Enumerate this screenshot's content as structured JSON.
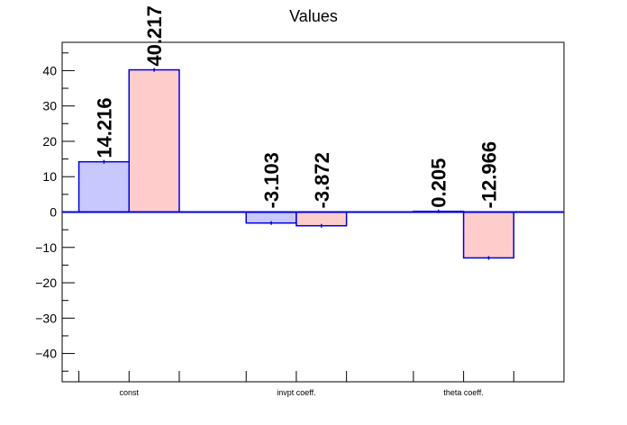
{
  "chart_data": {
    "type": "bar",
    "title": "Values",
    "xlabel": "",
    "ylabel": "",
    "ylim": [
      -48,
      48
    ],
    "grid": false,
    "categories": [
      "const",
      "invpt coeff.",
      "theta coeff."
    ],
    "series": [
      {
        "values": [
          14.216,
          -3.103,
          0.205
        ],
        "labels": [
          "14.216",
          "-3.103",
          "0.205"
        ],
        "color": "#c8c8ff"
      },
      {
        "values": [
          40.217,
          -3.872,
          -12.966
        ],
        "labels": [
          "40.217",
          "-3.872",
          "-12.966"
        ],
        "color": "#ffcccc"
      }
    ],
    "y_ticks": [
      -40,
      -30,
      -20,
      -10,
      0,
      10,
      20,
      30,
      40
    ],
    "y_tick_labels": [
      "−40",
      "−30",
      "−20",
      "−10",
      "0",
      "10",
      "20",
      "30",
      "40"
    ],
    "edge_color": "#0000dd"
  }
}
